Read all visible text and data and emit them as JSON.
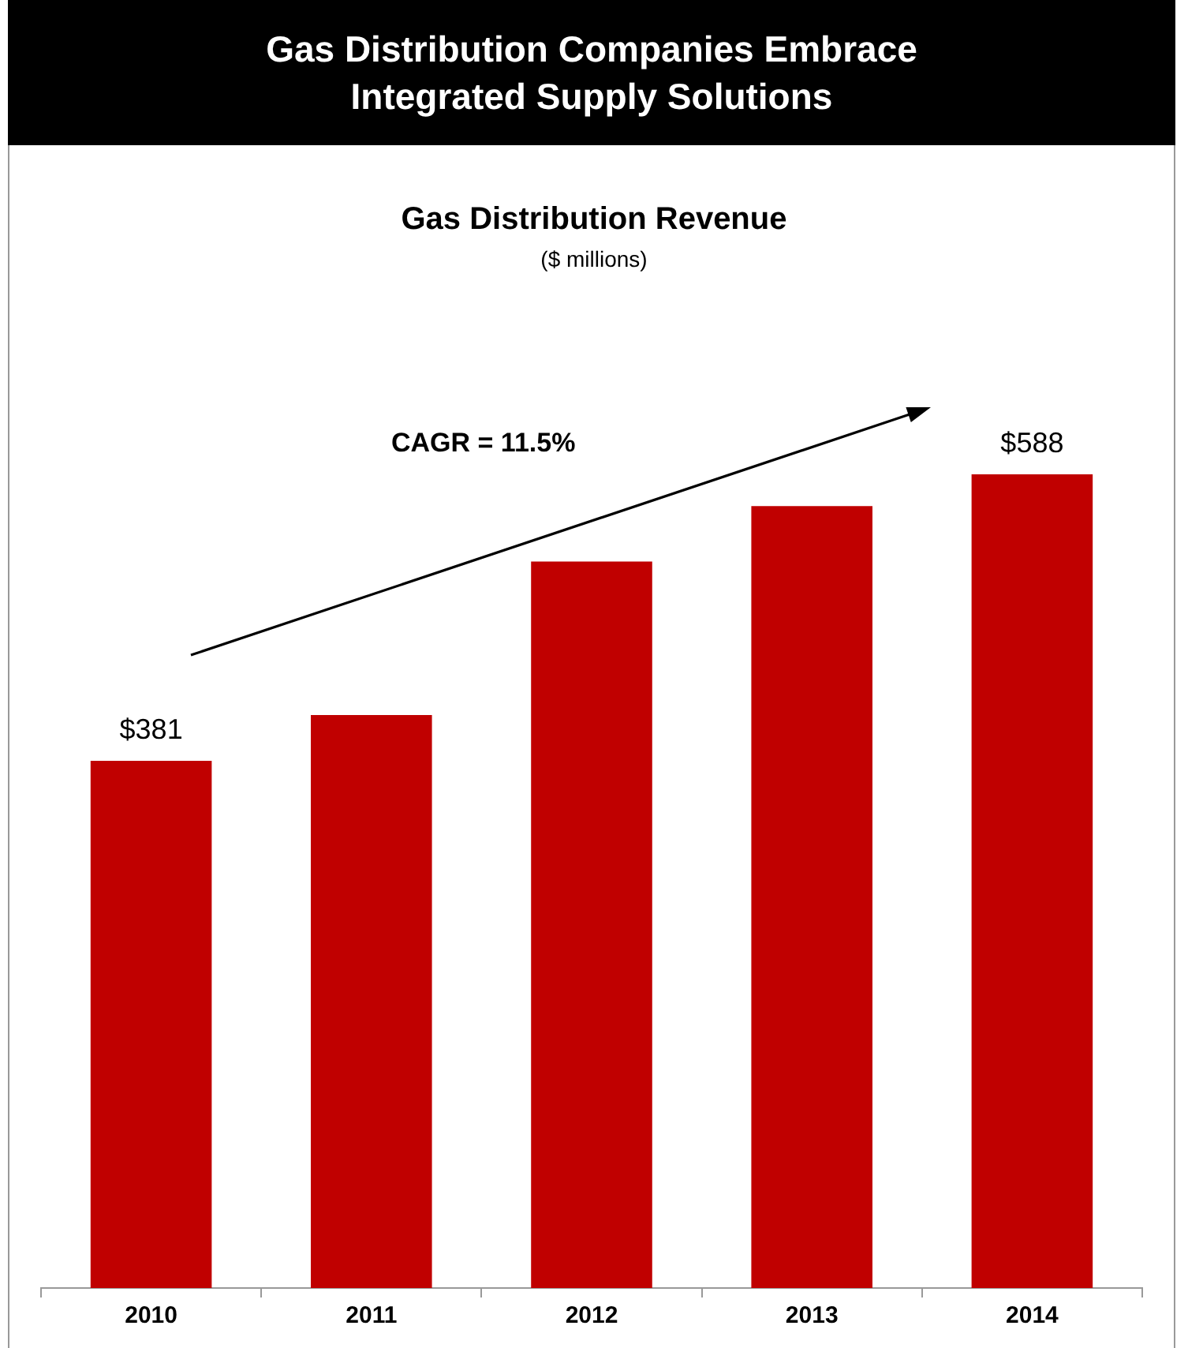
{
  "chart_data": {
    "type": "bar",
    "title": "Gas Distribution Companies Embrace Integrated Supply Solutions",
    "subtitle": "Gas Distribution Revenue",
    "annotations": [
      "($ millions)",
      "CAGR = 11.5%"
    ],
    "categories": [
      "2010",
      "2011",
      "2012",
      "2013",
      "2014"
    ],
    "values": [
      381,
      414,
      525,
      565,
      588
    ],
    "value_labels": [
      "$381",
      null,
      null,
      null,
      "$588"
    ],
    "color": "#c00000",
    "grid": false,
    "legend": false
  }
}
